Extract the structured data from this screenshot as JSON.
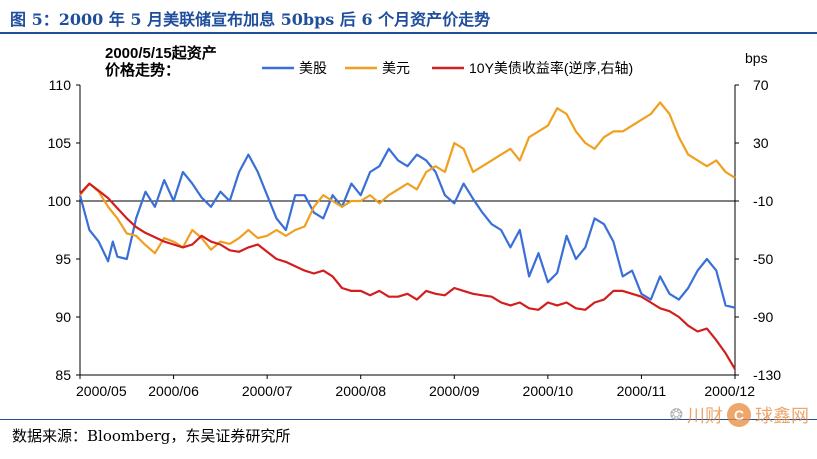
{
  "figure_title": "图 5：2000 年 5 月美联储宣布加息 50bps 后 6 个月资产价走势",
  "source_note": "数据来源：Bloomberg，东吴证券研究所",
  "watermark": {
    "logo_char": "C",
    "text": "川财",
    "text2": "球鑫网"
  },
  "chart_data": {
    "type": "line",
    "title_lines": [
      "2000/5/15起资产",
      "价格走势："
    ],
    "left_axis": {
      "range": [
        85,
        110
      ],
      "ticks": [
        "110",
        "105",
        "100",
        "95",
        "90",
        "85"
      ],
      "tick_values": [
        110,
        105,
        100,
        95,
        90,
        85
      ]
    },
    "right_axis": {
      "label": "bps",
      "range": [
        -130,
        70
      ],
      "ticks": [
        "70",
        "30",
        "-10",
        "-50",
        "-90",
        "-130"
      ],
      "tick_values": [
        70,
        30,
        -10,
        -50,
        -90,
        -130
      ]
    },
    "x_ticks": [
      "2000/05",
      "2000/06",
      "2000/07",
      "2000/08",
      "2000/09",
      "2000/10",
      "2000/11",
      "2000/12"
    ],
    "baseline": 100,
    "grid": false,
    "legend": {
      "placement": "top",
      "items": [
        {
          "label": "美股",
          "color": "#3a6fd8"
        },
        {
          "label": "美元",
          "color": "#f0a020"
        },
        {
          "label": "10Y美债收益率(逆序,右轴)",
          "color": "#d21e1e"
        }
      ]
    },
    "series": [
      {
        "name": "美股",
        "axis": "left",
        "color": "#3a6fd8",
        "x": [
          0.0,
          0.1,
          0.2,
          0.3,
          0.35,
          0.4,
          0.5,
          0.6,
          0.7,
          0.8,
          0.9,
          1.0,
          1.1,
          1.2,
          1.3,
          1.4,
          1.5,
          1.6,
          1.7,
          1.8,
          1.9,
          2.0,
          2.1,
          2.2,
          2.3,
          2.4,
          2.5,
          2.6,
          2.7,
          2.8,
          2.9,
          3.0,
          3.1,
          3.2,
          3.3,
          3.4,
          3.5,
          3.6,
          3.7,
          3.8,
          3.9,
          4.0,
          4.1,
          4.2,
          4.3,
          4.4,
          4.5,
          4.6,
          4.7,
          4.8,
          4.9,
          5.0,
          5.1,
          5.2,
          5.3,
          5.4,
          5.5,
          5.6,
          5.7,
          5.8,
          5.9,
          6.0,
          6.1,
          6.2,
          6.3,
          6.4,
          6.5,
          6.6,
          6.7,
          6.8,
          6.9,
          7.0
        ],
        "values": [
          100.5,
          97.5,
          96.5,
          94.8,
          96.5,
          95.2,
          95.0,
          98.5,
          100.8,
          99.5,
          101.8,
          100.0,
          102.5,
          101.5,
          100.3,
          99.5,
          100.8,
          100.0,
          102.5,
          104.0,
          102.5,
          100.5,
          98.5,
          97.5,
          100.5,
          100.5,
          99.0,
          98.5,
          100.5,
          99.5,
          101.5,
          100.5,
          102.5,
          103.0,
          104.5,
          103.5,
          103.0,
          104.0,
          103.5,
          102.5,
          100.5,
          99.8,
          101.5,
          100.2,
          99.0,
          98.0,
          97.5,
          96.0,
          97.5,
          93.5,
          95.5,
          93.0,
          93.8,
          97.0,
          95.0,
          96.0,
          98.5,
          98.0,
          96.5,
          93.5,
          94.0,
          92.0,
          91.5,
          93.5,
          92.0,
          91.5,
          92.5,
          94.0,
          95.0,
          94.0,
          91.0,
          90.8
        ]
      },
      {
        "name": "美元",
        "axis": "left",
        "color": "#f0a020",
        "x": [
          0.0,
          0.1,
          0.2,
          0.3,
          0.4,
          0.5,
          0.6,
          0.7,
          0.8,
          0.9,
          1.0,
          1.1,
          1.2,
          1.3,
          1.4,
          1.5,
          1.6,
          1.7,
          1.8,
          1.9,
          2.0,
          2.1,
          2.2,
          2.3,
          2.4,
          2.5,
          2.6,
          2.7,
          2.8,
          2.9,
          3.0,
          3.1,
          3.2,
          3.3,
          3.4,
          3.5,
          3.6,
          3.7,
          3.8,
          3.9,
          4.0,
          4.1,
          4.2,
          4.3,
          4.4,
          4.5,
          4.6,
          4.7,
          4.8,
          4.9,
          5.0,
          5.1,
          5.2,
          5.3,
          5.4,
          5.5,
          5.6,
          5.7,
          5.8,
          5.9,
          6.0,
          6.1,
          6.2,
          6.3,
          6.4,
          6.5,
          6.6,
          6.7,
          6.8,
          6.9,
          7.0
        ],
        "values": [
          100.5,
          101.5,
          100.8,
          99.5,
          98.5,
          97.2,
          97.0,
          96.2,
          95.5,
          96.8,
          96.5,
          96.0,
          97.5,
          96.8,
          95.8,
          96.5,
          96.3,
          96.8,
          97.5,
          96.8,
          97.0,
          97.5,
          97.0,
          97.5,
          97.8,
          99.5,
          100.5,
          100.0,
          99.5,
          100.0,
          100.0,
          100.5,
          99.8,
          100.5,
          101.0,
          101.5,
          101.0,
          102.5,
          103.0,
          102.5,
          105.0,
          104.5,
          102.5,
          103.0,
          103.5,
          104.0,
          104.5,
          103.5,
          105.5,
          106.0,
          106.5,
          108.0,
          107.5,
          106.0,
          105.0,
          104.5,
          105.5,
          106.0,
          106.0,
          106.5,
          107.0,
          107.5,
          108.5,
          107.5,
          105.5,
          104.0,
          103.5,
          103.0,
          103.5,
          102.5,
          102.0
        ]
      },
      {
        "name": "10Y美债收益率(逆序,右轴)",
        "axis": "right",
        "color": "#d21e1e",
        "x": [
          0.0,
          0.1,
          0.2,
          0.3,
          0.4,
          0.5,
          0.6,
          0.7,
          0.8,
          0.9,
          1.0,
          1.1,
          1.2,
          1.3,
          1.4,
          1.5,
          1.6,
          1.7,
          1.8,
          1.9,
          2.0,
          2.1,
          2.2,
          2.3,
          2.4,
          2.5,
          2.6,
          2.7,
          2.8,
          2.9,
          3.0,
          3.1,
          3.2,
          3.3,
          3.4,
          3.5,
          3.6,
          3.7,
          3.8,
          3.9,
          4.0,
          4.1,
          4.2,
          4.3,
          4.4,
          4.5,
          4.6,
          4.7,
          4.8,
          4.9,
          5.0,
          5.1,
          5.2,
          5.3,
          5.4,
          5.5,
          5.6,
          5.7,
          5.8,
          5.9,
          6.0,
          6.1,
          6.2,
          6.3,
          6.4,
          6.5,
          6.6,
          6.7,
          6.8,
          6.9,
          7.0
        ],
        "values": [
          -5,
          2,
          -3,
          -8,
          -15,
          -22,
          -28,
          -32,
          -35,
          -38,
          -40,
          -42,
          -40,
          -34,
          -38,
          -40,
          -44,
          -45,
          -42,
          -40,
          -45,
          -50,
          -52,
          -55,
          -58,
          -60,
          -58,
          -62,
          -70,
          -72,
          -72,
          -75,
          -72,
          -76,
          -76,
          -74,
          -78,
          -72,
          -74,
          -75,
          -70,
          -72,
          -74,
          -75,
          -76,
          -80,
          -82,
          -80,
          -84,
          -85,
          -80,
          -82,
          -80,
          -84,
          -85,
          -80,
          -78,
          -72,
          -72,
          -74,
          -76,
          -80,
          -84,
          -86,
          -90,
          -96,
          -100,
          -98,
          -106,
          -115,
          -126
        ]
      }
    ]
  }
}
